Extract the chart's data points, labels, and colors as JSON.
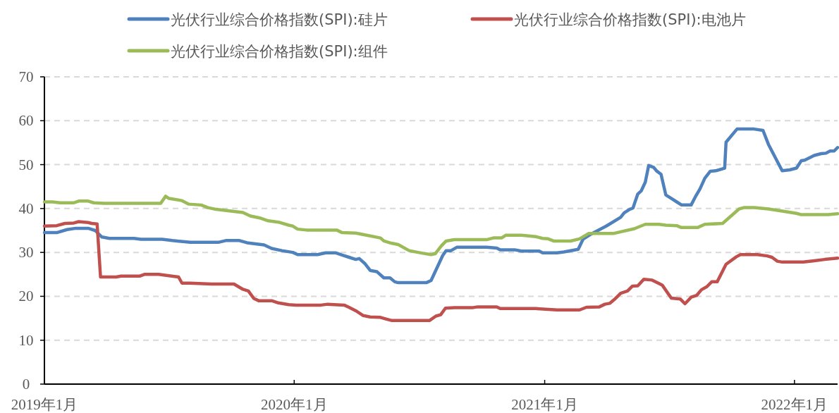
{
  "chart_data": {
    "type": "line",
    "legend": "top",
    "grid": "y",
    "xlim": [
      "2019-01-01",
      "2022-03-05"
    ],
    "xticks": [
      {
        "value": "2019-01-01",
        "label": "2019年1月"
      },
      {
        "value": "2020-01-01",
        "label": "2020年1月"
      },
      {
        "value": "2021-01-01",
        "label": "2021年1月"
      },
      {
        "value": "2022-01-01",
        "label": "2022年1月"
      }
    ],
    "ylim": [
      0,
      70
    ],
    "yticks": [
      0,
      10,
      20,
      30,
      40,
      50,
      60,
      70
    ],
    "series": [
      {
        "name": "光伏行业综合价格指数(SPI):硅片",
        "color": "#4f81bd",
        "x": [
          "2019-01-01",
          "2019-01-19",
          "2019-02-03",
          "2019-02-16",
          "2019-03-06",
          "2019-03-16",
          "2019-03-26",
          "2019-04-06",
          "2019-05-12",
          "2019-05-22",
          "2019-06-22",
          "2019-07-07",
          "2019-08-02",
          "2019-09-12",
          "2019-09-23",
          "2019-10-13",
          "2019-10-24",
          "2019-11-18",
          "2019-11-29",
          "2019-12-14",
          "2019-12-30",
          "2020-01-06",
          "2020-02-04",
          "2020-02-16",
          "2020-03-02",
          "2020-03-11",
          "2020-03-21",
          "2020-03-31",
          "2020-04-05",
          "2020-04-13",
          "2020-04-21",
          "2020-05-01",
          "2020-05-11",
          "2020-05-20",
          "2020-05-27",
          "2020-06-01",
          "2020-07-12",
          "2020-07-19",
          "2020-08-05",
          "2020-08-10",
          "2020-08-17",
          "2020-08-26",
          "2020-10-08",
          "2020-10-23",
          "2020-10-28",
          "2020-11-18",
          "2020-11-28",
          "2020-12-24",
          "2020-12-29",
          "2021-01-19",
          "2021-01-29",
          "2021-02-19",
          "2021-02-26",
          "2021-03-09",
          "2021-04-01",
          "2021-04-22",
          "2021-04-27",
          "2021-05-05",
          "2021-05-10",
          "2021-05-17",
          "2021-05-22",
          "2021-05-28",
          "2021-06-02",
          "2021-06-09",
          "2021-06-14",
          "2021-06-20",
          "2021-06-27",
          "2021-07-06",
          "2021-07-13",
          "2021-07-20",
          "2021-08-03",
          "2021-08-10",
          "2021-08-16",
          "2021-08-23",
          "2021-08-31",
          "2021-09-08",
          "2021-09-21",
          "2021-09-23",
          "2021-10-09",
          "2021-11-03",
          "2021-11-16",
          "2021-11-24",
          "2021-12-14",
          "2021-12-25",
          "2022-01-04",
          "2022-01-11",
          "2022-01-16",
          "2022-01-30",
          "2022-02-09",
          "2022-02-16",
          "2022-02-22",
          "2022-02-28",
          "2022-03-05"
        ],
        "values": [
          34.5,
          34.5,
          35.2,
          35.5,
          35.5,
          35,
          33.5,
          33.2,
          33.2,
          33,
          33,
          32.7,
          32.3,
          32.3,
          32.7,
          32.7,
          32.2,
          31.7,
          30.9,
          30.4,
          30,
          29.5,
          29.5,
          29.9,
          29.9,
          29.4,
          28.9,
          28.4,
          28.6,
          27.5,
          25.9,
          25.6,
          24.2,
          24.2,
          23.3,
          23.1,
          23.1,
          23.6,
          29.3,
          30.4,
          30.4,
          31.2,
          31.2,
          31,
          30.6,
          30.6,
          30.3,
          30.3,
          29.9,
          29.9,
          30.1,
          30.7,
          33,
          34.1,
          36,
          38,
          39,
          39.8,
          40.1,
          43.3,
          44,
          46,
          49.8,
          49.4,
          48.5,
          47.8,
          43.1,
          42.2,
          41.5,
          40.8,
          40.8,
          42.9,
          44.5,
          46.9,
          48.5,
          48.6,
          49.2,
          55.1,
          58.1,
          58.1,
          57.8,
          54.6,
          48.6,
          48.8,
          49.2,
          50.9,
          51,
          52.1,
          52.5,
          52.6,
          53.1,
          53.1,
          53.9
        ]
      },
      {
        "name": "光伏行业综合价格指数(SPI):电池片",
        "color": "#c0504d",
        "x": [
          "2019-01-01",
          "2019-01-19",
          "2019-01-31",
          "2019-02-13",
          "2019-02-20",
          "2019-03-06",
          "2019-03-11",
          "2019-03-19",
          "2019-03-24",
          "2019-04-16",
          "2019-04-23",
          "2019-05-20",
          "2019-05-27",
          "2019-06-17",
          "2019-07-02",
          "2019-07-16",
          "2019-07-21",
          "2019-08-02",
          "2019-09-02",
          "2019-10-05",
          "2019-10-18",
          "2019-10-26",
          "2019-11-03",
          "2019-11-10",
          "2019-11-29",
          "2019-12-09",
          "2019-12-24",
          "2020-01-04",
          "2020-02-09",
          "2020-02-19",
          "2020-03-14",
          "2020-03-21",
          "2020-03-31",
          "2020-04-11",
          "2020-04-21",
          "2020-05-06",
          "2020-05-15",
          "2020-05-22",
          "2020-07-17",
          "2020-07-26",
          "2020-08-02",
          "2020-08-09",
          "2020-08-22",
          "2020-09-17",
          "2020-09-25",
          "2020-10-23",
          "2020-10-28",
          "2020-12-19",
          "2021-01-19",
          "2021-02-21",
          "2021-03-03",
          "2021-03-22",
          "2021-03-30",
          "2021-04-06",
          "2021-04-13",
          "2021-04-22",
          "2021-05-02",
          "2021-05-09",
          "2021-05-17",
          "2021-05-26",
          "2021-06-07",
          "2021-06-17",
          "2021-06-22",
          "2021-07-05",
          "2021-07-18",
          "2021-07-25",
          "2021-08-03",
          "2021-08-11",
          "2021-08-18",
          "2021-08-26",
          "2021-09-02",
          "2021-09-10",
          "2021-09-23",
          "2021-10-08",
          "2021-10-14",
          "2021-11-08",
          "2021-11-22",
          "2021-11-29",
          "2021-12-07",
          "2021-12-14",
          "2022-01-14",
          "2022-01-30",
          "2022-02-14",
          "2022-03-05"
        ],
        "values": [
          36,
          36.1,
          36.6,
          36.7,
          37,
          36.8,
          36.6,
          36.5,
          24.4,
          24.4,
          24.6,
          24.6,
          25,
          25,
          24.7,
          24.4,
          23,
          23,
          22.8,
          22.8,
          21.6,
          21.2,
          19.5,
          19,
          19,
          18.5,
          18.1,
          18,
          18,
          18.2,
          18,
          17.5,
          16.7,
          15.6,
          15.3,
          15.2,
          14.8,
          14.5,
          14.5,
          15.5,
          15.8,
          17.3,
          17.4,
          17.4,
          17.6,
          17.6,
          17.2,
          17.2,
          16.9,
          16.9,
          17.5,
          17.6,
          18.2,
          18.4,
          19.3,
          20.7,
          21.2,
          22.3,
          22.4,
          23.9,
          23.7,
          22.9,
          22.5,
          19.6,
          19.4,
          18.3,
          19.8,
          20.2,
          21.5,
          22.2,
          23.3,
          23.3,
          27.3,
          29,
          29.5,
          29.5,
          29.2,
          28.9,
          28,
          27.8,
          27.8,
          28.1,
          28.4,
          28.7
        ]
      },
      {
        "name": "光伏行业综合价格指数(SPI):组件",
        "color": "#9bbb59",
        "x": [
          "2019-01-01",
          "2019-01-13",
          "2019-01-24",
          "2019-02-13",
          "2019-02-20",
          "2019-03-06",
          "2019-03-14",
          "2019-03-29",
          "2019-06-20",
          "2019-06-27",
          "2019-07-02",
          "2019-07-21",
          "2019-07-31",
          "2019-08-18",
          "2019-08-28",
          "2019-09-09",
          "2019-10-18",
          "2019-10-29",
          "2019-11-13",
          "2019-11-24",
          "2019-12-09",
          "2019-12-24",
          "2019-12-30",
          "2020-01-06",
          "2020-01-19",
          "2020-03-03",
          "2020-03-11",
          "2020-03-31",
          "2020-05-06",
          "2020-05-11",
          "2020-05-22",
          "2020-06-01",
          "2020-06-17",
          "2020-07-07",
          "2020-07-19",
          "2020-07-25",
          "2020-08-03",
          "2020-08-10",
          "2020-08-22",
          "2020-10-08",
          "2020-10-18",
          "2020-10-30",
          "2020-11-05",
          "2020-11-28",
          "2020-12-19",
          "2020-12-29",
          "2021-01-06",
          "2021-01-14",
          "2021-02-08",
          "2021-02-21",
          "2021-03-06",
          "2021-04-11",
          "2021-05-12",
          "2021-05-28",
          "2021-06-17",
          "2021-06-27",
          "2021-07-13",
          "2021-07-19",
          "2021-08-13",
          "2021-08-23",
          "2021-09-18",
          "2021-10-12",
          "2021-10-19",
          "2021-11-03",
          "2021-11-24",
          "2021-12-14",
          "2022-01-04",
          "2022-01-11",
          "2022-02-19",
          "2022-03-05"
        ],
        "values": [
          41.5,
          41.5,
          41.3,
          41.3,
          41.7,
          41.7,
          41.3,
          41.2,
          41.2,
          42.8,
          42.3,
          41.8,
          41,
          40.8,
          40.2,
          39.8,
          39.1,
          38.3,
          37.8,
          37.2,
          36.9,
          36.2,
          36,
          35.3,
          35.1,
          35.1,
          34.5,
          34.4,
          33.3,
          32.6,
          32.1,
          31.8,
          30.4,
          29.8,
          29.5,
          29.7,
          31.5,
          32.6,
          32.9,
          32.9,
          33.3,
          33.3,
          33.9,
          33.9,
          33.6,
          33.2,
          33.1,
          32.6,
          32.6,
          33.1,
          34.3,
          34.3,
          35.4,
          36.4,
          36.4,
          36.2,
          36.1,
          35.7,
          35.7,
          36.4,
          36.6,
          39.9,
          40.2,
          40.2,
          39.9,
          39.4,
          38.9,
          38.6,
          38.6,
          38.8
        ]
      }
    ]
  }
}
